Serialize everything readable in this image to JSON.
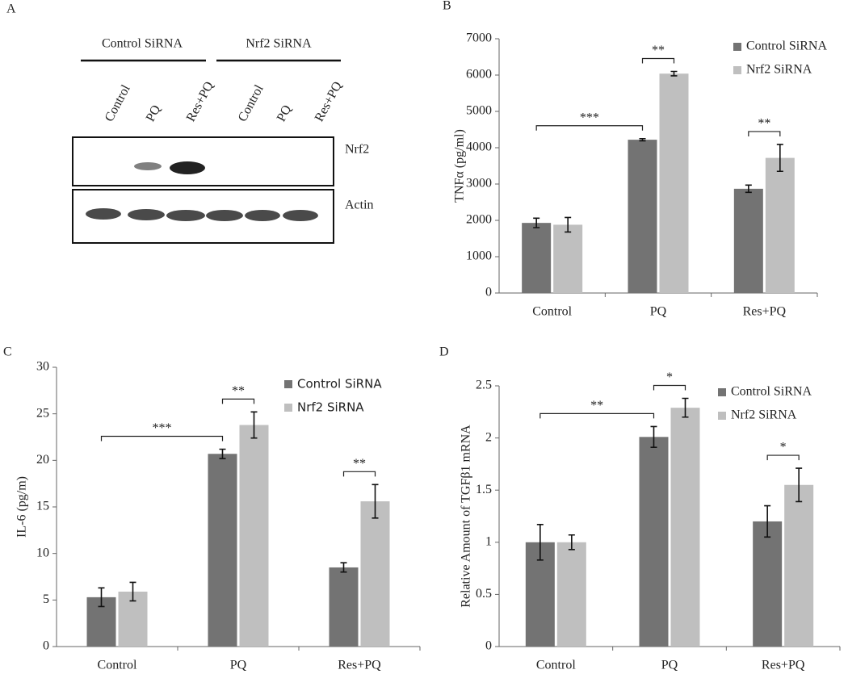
{
  "blot": {
    "panel": "A",
    "groups": [
      "Control SiRNA",
      "Nrf2 SiRNA"
    ],
    "lanes": [
      "Control",
      "PQ",
      "Res+PQ",
      "Control",
      "PQ",
      "Res+PQ"
    ],
    "rows": [
      "Nrf2",
      "Actin"
    ]
  },
  "chart_data": [
    {
      "type": "bar",
      "panel": "B",
      "ylabel": "TNFα (pg/ml)",
      "categories": [
        "Control",
        "PQ",
        "Res+PQ"
      ],
      "series": [
        {
          "name": "Control SiRNA",
          "color": "#737373",
          "values": [
            1930,
            4220,
            2870
          ],
          "errors": [
            130,
            30,
            100
          ]
        },
        {
          "name": "Nrf2 SiRNA",
          "color": "#bfbfbf",
          "values": [
            1880,
            6040,
            3720
          ],
          "errors": [
            200,
            60,
            370
          ]
        }
      ],
      "annotations": [
        {
          "text": "***"
        },
        {
          "text": "**"
        },
        {
          "text": "**"
        }
      ],
      "ylim": [
        0,
        7000
      ],
      "yticks": [
        0,
        1000,
        2000,
        3000,
        4000,
        5000,
        6000,
        7000
      ],
      "legend": "upper right"
    },
    {
      "type": "bar",
      "panel": "C",
      "ylabel": "IL-6 (pg/m)",
      "categories": [
        "Control",
        "PQ",
        "Res+PQ"
      ],
      "series": [
        {
          "name": "Control SiRNA",
          "color": "#737373",
          "values": [
            5.3,
            20.7,
            8.5
          ],
          "errors": [
            1.0,
            0.5,
            0.5
          ]
        },
        {
          "name": "Nrf2 SiRNA",
          "color": "#bfbfbf",
          "values": [
            5.9,
            23.8,
            15.6
          ],
          "errors": [
            1.0,
            1.4,
            1.8
          ]
        }
      ],
      "annotations": [
        {
          "text": "***"
        },
        {
          "text": "**"
        },
        {
          "text": "**"
        }
      ],
      "ylim": [
        0,
        30
      ],
      "yticks": [
        0,
        5,
        10,
        15,
        20,
        25,
        30
      ],
      "legend": "upper right"
    },
    {
      "type": "bar",
      "panel": "D",
      "ylabel": "Relative Amount of TGFβ1 mRNA",
      "categories": [
        "Control",
        "PQ",
        "Res+PQ"
      ],
      "series": [
        {
          "name": "Control SiRNA",
          "color": "#737373",
          "values": [
            1.0,
            2.01,
            1.2
          ],
          "errors": [
            0.17,
            0.1,
            0.15
          ]
        },
        {
          "name": "Nrf2 SiRNA",
          "color": "#bfbfbf",
          "values": [
            1.0,
            2.29,
            1.55
          ],
          "errors": [
            0.07,
            0.09,
            0.16
          ]
        }
      ],
      "annotations": [
        {
          "text": "**"
        },
        {
          "text": "*"
        },
        {
          "text": "*"
        }
      ],
      "ylim": [
        0,
        2.5
      ],
      "yticks": [
        0,
        0.5,
        1,
        1.5,
        2,
        2.5
      ],
      "legend": "upper right"
    }
  ]
}
